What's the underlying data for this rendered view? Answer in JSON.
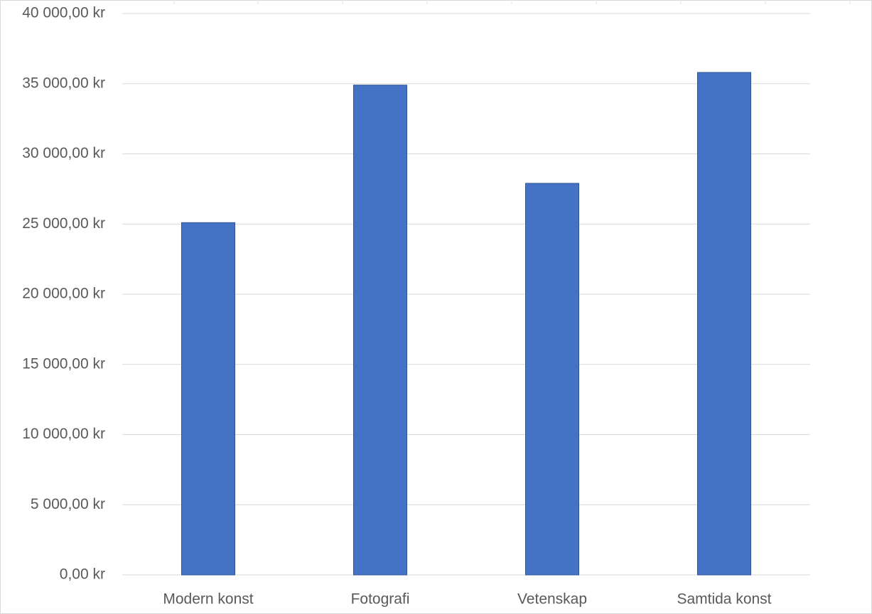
{
  "chart_data": {
    "type": "bar",
    "categories": [
      "Modern konst",
      "Fotografi",
      "Vetenskap",
      "Samtida konst"
    ],
    "values": [
      25100,
      34900,
      27900,
      35800
    ],
    "color": "#4472c4",
    "ylim": [
      0,
      40000
    ],
    "yticks": [
      {
        "value": 0,
        "label": "0,00 kr"
      },
      {
        "value": 5000,
        "label": "5 000,00 kr"
      },
      {
        "value": 10000,
        "label": "10 000,00 kr"
      },
      {
        "value": 15000,
        "label": "15 000,00 kr"
      },
      {
        "value": 20000,
        "label": "20 000,00 kr"
      },
      {
        "value": 25000,
        "label": "25 000,00 kr"
      },
      {
        "value": 30000,
        "label": "30 000,00 kr"
      },
      {
        "value": 35000,
        "label": "35 000,00 kr"
      },
      {
        "value": 40000,
        "label": "40 000,00 kr"
      }
    ],
    "grid": true
  }
}
